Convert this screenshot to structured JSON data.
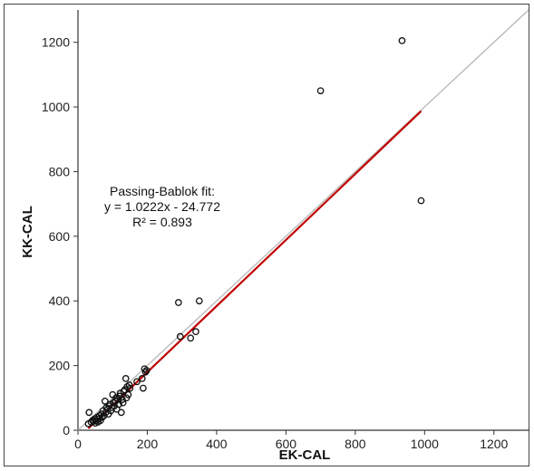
{
  "chart_data": {
    "type": "scatter",
    "xlabel": "EK-CAL",
    "ylabel": "KK-CAL",
    "xlim": [
      0,
      1300
    ],
    "ylim": [
      0,
      1300
    ],
    "x_ticks": [
      "0",
      "200",
      "400",
      "600",
      "800",
      "1000",
      "1200"
    ],
    "y_ticks": [
      "0",
      "200",
      "400",
      "600",
      "800",
      "1000",
      "1200"
    ],
    "grid": false,
    "annotation": {
      "line1": "Passing-Bablok fit:",
      "line2": "y = 1.0222x - 24.772",
      "line3": "R² = 0.893"
    },
    "identity_line": {
      "from": [
        0,
        0
      ],
      "to": [
        1300,
        1300
      ],
      "color": "#bbbbbb"
    },
    "fit_line": {
      "slope": 1.0222,
      "intercept": -24.772,
      "x_range": [
        30,
        990
      ],
      "color": "#c00000"
    },
    "points": [
      [
        30,
        20
      ],
      [
        32,
        55
      ],
      [
        38,
        25
      ],
      [
        42,
        30
      ],
      [
        45,
        28
      ],
      [
        48,
        35
      ],
      [
        50,
        22
      ],
      [
        52,
        30
      ],
      [
        55,
        40
      ],
      [
        58,
        25
      ],
      [
        60,
        35
      ],
      [
        62,
        45
      ],
      [
        65,
        30
      ],
      [
        68,
        50
      ],
      [
        70,
        40
      ],
      [
        72,
        60
      ],
      [
        75,
        45
      ],
      [
        78,
        90
      ],
      [
        80,
        55
      ],
      [
        82,
        70
      ],
      [
        85,
        65
      ],
      [
        88,
        50
      ],
      [
        90,
        75
      ],
      [
        92,
        80
      ],
      [
        95,
        60
      ],
      [
        98,
        70
      ],
      [
        100,
        110
      ],
      [
        102,
        85
      ],
      [
        105,
        75
      ],
      [
        108,
        90
      ],
      [
        110,
        100
      ],
      [
        112,
        65
      ],
      [
        115,
        95
      ],
      [
        118,
        80
      ],
      [
        120,
        105
      ],
      [
        122,
        115
      ],
      [
        125,
        55
      ],
      [
        128,
        95
      ],
      [
        130,
        85
      ],
      [
        132,
        120
      ],
      [
        135,
        125
      ],
      [
        138,
        160
      ],
      [
        140,
        100
      ],
      [
        142,
        135
      ],
      [
        145,
        110
      ],
      [
        148,
        140
      ],
      [
        150,
        130
      ],
      [
        170,
        150
      ],
      [
        185,
        160
      ],
      [
        188,
        130
      ],
      [
        192,
        190
      ],
      [
        195,
        180
      ],
      [
        198,
        185
      ],
      [
        290,
        395
      ],
      [
        295,
        290
      ],
      [
        325,
        285
      ],
      [
        340,
        305
      ],
      [
        350,
        400
      ],
      [
        700,
        1050
      ],
      [
        935,
        1205
      ],
      [
        990,
        710
      ]
    ]
  }
}
